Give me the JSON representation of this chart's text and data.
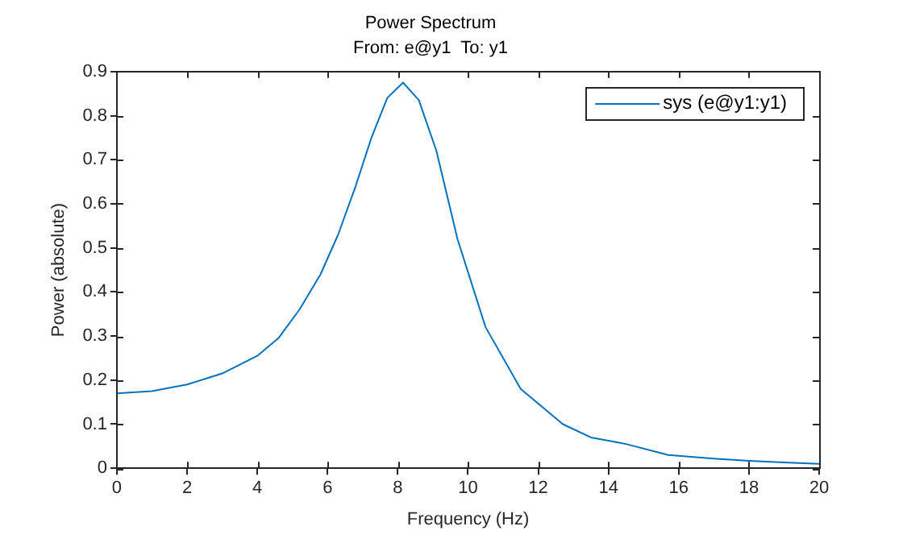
{
  "chart_data": {
    "type": "line",
    "title": "Power Spectrum",
    "subtitle": "From: e@y1  To: y1",
    "xlabel": "Frequency (Hz)",
    "ylabel": "Power (absolute)",
    "x": [
      0,
      1,
      2,
      3,
      4,
      4.6,
      5.2,
      5.8,
      6.3,
      6.8,
      7.25,
      7.7,
      8.15,
      8.6,
      9.1,
      9.7,
      10.5,
      11.5,
      12.7,
      13.5,
      14.5,
      15.7,
      17,
      18,
      19,
      20
    ],
    "series": [
      {
        "name": "sys (e@y1:y1)",
        "color": "#0072bd",
        "values": [
          0.17,
          0.175,
          0.19,
          0.215,
          0.255,
          0.295,
          0.36,
          0.44,
          0.53,
          0.64,
          0.75,
          0.84,
          0.875,
          0.835,
          0.72,
          0.52,
          0.32,
          0.18,
          0.1,
          0.07,
          0.055,
          0.03,
          0.022,
          0.017,
          0.013,
          0.01
        ]
      }
    ],
    "xlim": [
      0,
      20
    ],
    "xticks": [
      0,
      2,
      4,
      6,
      8,
      10,
      12,
      14,
      16,
      18,
      20
    ],
    "ylim": [
      0,
      0.9
    ],
    "yticks": [
      0,
      0.1,
      0.2,
      0.3,
      0.4,
      0.5,
      0.6,
      0.7,
      0.8,
      0.9
    ],
    "grid": false,
    "legend": "top right",
    "marker": "none",
    "line_style": "solid"
  }
}
